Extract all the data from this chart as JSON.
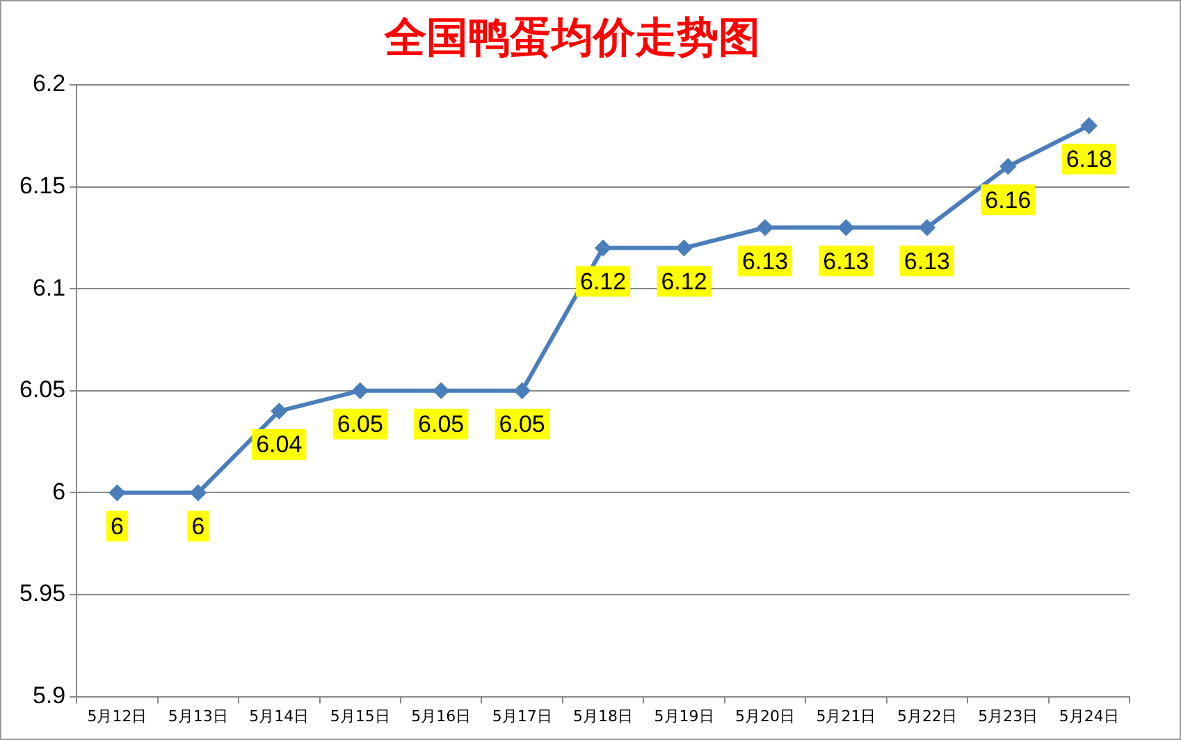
{
  "chart_data": {
    "type": "line",
    "title": "全国鸭蛋均价走势图",
    "categories": [
      "5月12日",
      "5月13日",
      "5月14日",
      "5月15日",
      "5月16日",
      "5月17日",
      "5月18日",
      "5月19日",
      "5月20日",
      "5月21日",
      "5月22日",
      "5月23日",
      "5月24日"
    ],
    "series": [
      {
        "color": "#4a7ebb",
        "values": [
          6,
          6,
          6.04,
          6.05,
          6.05,
          6.05,
          6.12,
          6.12,
          6.13,
          6.13,
          6.13,
          6.16,
          6.18
        ]
      }
    ],
    "ylim": [
      5.9,
      6.2
    ],
    "yticks": [
      5.9,
      5.95,
      6,
      6.05,
      6.1,
      6.15,
      6.2
    ],
    "grid": "y",
    "marker": "diamond",
    "line_style": "solid",
    "data_labels": true
  }
}
